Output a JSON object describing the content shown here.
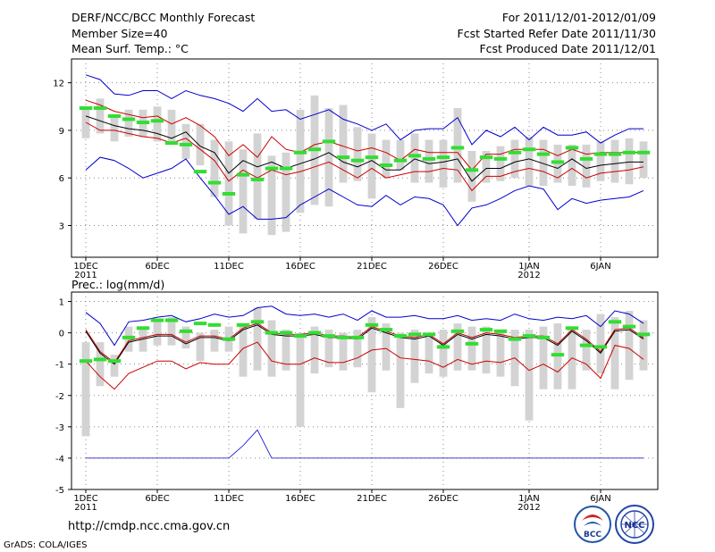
{
  "header": {
    "title": "DERF/NCC/BCC Monthly Forecast",
    "member_size": "Member Size=40",
    "variable": "Mean Surf. Temp.: °C",
    "period": "For 2011/12/01-2012/01/09",
    "fcst_started": "Fcst Started Refer Date 2011/11/30",
    "fcst_produced": "Fcst Produced Date 2011/12/01"
  },
  "footer": {
    "url": "http://cmdp.ncc.cma.gov.cn",
    "credit": "GrADS: COLA/IGES",
    "logo_bcc": "BCC",
    "logo_ncc": "NCC"
  },
  "colors": {
    "spread": "#d3d3d3",
    "observed": "#33dd33",
    "envelope": "#0000cc",
    "quartile": "#cc0000",
    "mean": "#000000",
    "grid": "#888888"
  },
  "chart_data": [
    {
      "type": "line",
      "title": "",
      "ylabel": "Mean Surf. Temp.: °C",
      "days": 40,
      "x_ticks": [
        {
          "day": 1,
          "label": "1DEC",
          "sub": "2011"
        },
        {
          "day": 6,
          "label": "6DEC",
          "sub": ""
        },
        {
          "day": 11,
          "label": "11DEC",
          "sub": ""
        },
        {
          "day": 16,
          "label": "16DEC",
          "sub": ""
        },
        {
          "day": 21,
          "label": "21DEC",
          "sub": ""
        },
        {
          "day": 26,
          "label": "26DEC",
          "sub": ""
        },
        {
          "day": 32,
          "label": "1JAN",
          "sub": "2012"
        },
        {
          "day": 37,
          "label": "6JAN",
          "sub": ""
        }
      ],
      "ylim": [
        1,
        13.5
      ],
      "y_ticks": [
        3,
        6,
        9,
        12
      ],
      "y_tick_labels": [
        "3",
        "6",
        "9",
        "12"
      ],
      "bar_low": [
        8.5,
        8.8,
        8.3,
        8.6,
        8.6,
        8.3,
        8.3,
        7.2,
        6.8,
        4.8,
        3.0,
        2.5,
        3.4,
        2.4,
        2.6,
        3.8,
        4.3,
        4.2,
        5.7,
        5.8,
        4.7,
        6.0,
        6.5,
        5.7,
        5.7,
        5.4,
        5.7,
        4.5,
        5.7,
        5.8,
        6.0,
        5.5,
        5.5,
        5.7,
        5.5,
        5.4,
        5.8,
        5.7,
        5.6,
        6.0
      ],
      "bar_high": [
        10.5,
        11.0,
        10.0,
        10.3,
        10.3,
        10.5,
        10.3,
        9.4,
        9.4,
        8.4,
        8.3,
        7.8,
        8.8,
        7.4,
        7.6,
        10.3,
        11.2,
        10.4,
        10.6,
        9.2,
        8.8,
        8.4,
        8.4,
        8.8,
        8.4,
        8.4,
        10.4,
        7.7,
        7.7,
        8.0,
        8.4,
        8.6,
        8.4,
        8.1,
        8.1,
        8.1,
        8.3,
        8.4,
        8.5,
        8.3
      ],
      "obs": [
        10.4,
        10.4,
        9.9,
        9.7,
        9.5,
        9.6,
        8.2,
        8.1,
        6.4,
        5.7,
        5.0,
        6.2,
        5.9,
        6.6,
        6.6,
        7.6,
        7.8,
        8.3,
        7.3,
        7.1,
        7.3,
        6.8,
        7.1,
        7.4,
        7.2,
        7.3,
        7.9,
        6.5,
        7.3,
        7.2,
        7.6,
        7.8,
        7.5,
        7.0,
        7.9,
        7.2,
        7.5,
        7.5,
        7.6,
        7.6
      ],
      "max": [
        12.5,
        12.2,
        11.3,
        11.2,
        11.5,
        11.5,
        11.0,
        11.5,
        11.2,
        11.0,
        10.7,
        10.2,
        11.0,
        10.2,
        10.3,
        9.7,
        10.0,
        10.3,
        9.7,
        9.4,
        9.0,
        9.4,
        8.4,
        9.0,
        9.1,
        9.1,
        9.8,
        8.1,
        9.0,
        8.6,
        9.2,
        8.4,
        9.2,
        8.7,
        8.7,
        8.9,
        8.2,
        8.7,
        9.1,
        9.1
      ],
      "q_high": [
        10.9,
        10.6,
        10.2,
        10.0,
        9.8,
        9.9,
        9.4,
        9.8,
        9.3,
        8.6,
        7.4,
        8.1,
        7.3,
        8.6,
        7.8,
        7.6,
        8.1,
        8.3,
        8.0,
        7.7,
        7.9,
        7.6,
        7.1,
        7.8,
        7.6,
        7.6,
        7.6,
        6.5,
        7.5,
        7.5,
        7.8,
        7.8,
        7.8,
        7.4,
        7.8,
        7.5,
        7.6,
        7.6,
        7.6,
        7.6
      ],
      "mean": [
        9.9,
        9.6,
        9.3,
        9.1,
        9.0,
        8.8,
        8.5,
        8.9,
        8.0,
        7.6,
        6.3,
        7.1,
        6.7,
        7.0,
        6.6,
        6.9,
        7.2,
        7.6,
        7.0,
        6.7,
        7.1,
        6.5,
        6.5,
        7.2,
        6.9,
        7.0,
        7.2,
        5.8,
        6.6,
        6.6,
        7.0,
        7.2,
        6.9,
        6.6,
        7.2,
        6.6,
        6.8,
        6.9,
        7.0,
        7.0
      ],
      "q_low": [
        9.5,
        9.0,
        9.0,
        8.8,
        8.6,
        8.5,
        8.2,
        8.5,
        7.8,
        7.1,
        5.8,
        6.5,
        6.0,
        6.5,
        6.2,
        6.4,
        6.7,
        7.0,
        6.5,
        6.0,
        6.6,
        6.0,
        6.2,
        6.4,
        6.4,
        6.6,
        6.5,
        5.2,
        6.1,
        6.1,
        6.4,
        6.6,
        6.4,
        6.0,
        6.6,
        6.0,
        6.3,
        6.4,
        6.5,
        6.7
      ],
      "min": [
        6.5,
        7.3,
        7.1,
        6.6,
        6.0,
        6.3,
        6.6,
        7.2,
        6.0,
        4.9,
        3.7,
        4.2,
        3.4,
        3.4,
        3.5,
        4.3,
        4.8,
        5.3,
        4.8,
        4.3,
        4.2,
        4.9,
        4.3,
        4.8,
        4.7,
        4.3,
        3.0,
        4.1,
        4.3,
        4.7,
        5.2,
        5.5,
        5.3,
        4.0,
        4.7,
        4.4,
        4.6,
        4.7,
        4.8,
        5.2
      ]
    },
    {
      "type": "line",
      "title": "",
      "ylabel": "Prec.: log(mm/d)",
      "days": 40,
      "x_ticks": [
        {
          "day": 1,
          "label": "1DEC",
          "sub": "2011"
        },
        {
          "day": 6,
          "label": "6DEC",
          "sub": ""
        },
        {
          "day": 11,
          "label": "11DEC",
          "sub": ""
        },
        {
          "day": 16,
          "label": "16DEC",
          "sub": ""
        },
        {
          "day": 21,
          "label": "21DEC",
          "sub": ""
        },
        {
          "day": 26,
          "label": "26DEC",
          "sub": ""
        },
        {
          "day": 32,
          "label": "1JAN",
          "sub": "2012"
        },
        {
          "day": 37,
          "label": "6JAN",
          "sub": ""
        }
      ],
      "ylim": [
        -5,
        1.3
      ],
      "y_ticks": [
        -5,
        -4,
        -3,
        -2,
        -1,
        0,
        1
      ],
      "y_tick_labels": [
        "-5",
        "-4",
        "-3",
        "-2",
        "-1",
        "0",
        "1"
      ],
      "bar_low": [
        -3.3,
        -1.7,
        -1.4,
        -0.6,
        -0.6,
        -0.4,
        -0.4,
        -0.5,
        -0.9,
        -0.6,
        -0.6,
        -1.4,
        -1.2,
        -1.4,
        -1.2,
        -3.0,
        -1.3,
        -1.1,
        -1.2,
        -1.1,
        -1.9,
        -1.2,
        -2.4,
        -1.6,
        -1.3,
        -1.4,
        -1.2,
        -1.2,
        -1.3,
        -1.4,
        -1.7,
        -2.8,
        -1.8,
        -1.8,
        -1.8,
        -1.2,
        -1.3,
        -1.8,
        -1.5,
        -1.2
      ],
      "bar_high": [
        -0.3,
        -0.3,
        -0.7,
        0.2,
        0.1,
        0.4,
        0.5,
        0.2,
        0.0,
        0.1,
        0.2,
        0.3,
        0.8,
        0.4,
        0.1,
        0.0,
        0.2,
        0.1,
        0.0,
        0.1,
        0.5,
        0.3,
        0.0,
        0.1,
        0.0,
        0.1,
        0.3,
        0.2,
        0.2,
        0.1,
        0.1,
        0.1,
        0.2,
        0.3,
        0.2,
        0.1,
        0.6,
        0.5,
        0.7,
        0.4
      ],
      "obs": [
        -0.9,
        -0.85,
        -0.9,
        -0.15,
        0.15,
        0.4,
        0.4,
        0.05,
        0.3,
        0.25,
        -0.2,
        0.25,
        0.35,
        0.0,
        0.0,
        -0.1,
        0.0,
        -0.1,
        -0.15,
        -0.15,
        0.25,
        0.1,
        -0.1,
        -0.05,
        -0.05,
        -0.45,
        0.05,
        -0.35,
        0.1,
        0.05,
        -0.2,
        -0.1,
        -0.15,
        -0.7,
        0.15,
        -0.4,
        -0.45,
        0.35,
        0.2,
        -0.05
      ],
      "max": [
        0.65,
        0.3,
        -0.4,
        0.35,
        0.4,
        0.5,
        0.55,
        0.35,
        0.45,
        0.6,
        0.5,
        0.55,
        0.8,
        0.85,
        0.6,
        0.55,
        0.6,
        0.5,
        0.6,
        0.4,
        0.7,
        0.5,
        0.5,
        0.55,
        0.45,
        0.45,
        0.55,
        0.4,
        0.45,
        0.4,
        0.6,
        0.45,
        0.4,
        0.5,
        0.45,
        0.55,
        0.2,
        0.7,
        0.6,
        0.3
      ],
      "q_high": [
        0.1,
        -0.6,
        -0.95,
        -0.25,
        -0.15,
        -0.05,
        -0.05,
        -0.3,
        -0.1,
        -0.1,
        -0.2,
        0.15,
        0.3,
        0.0,
        -0.05,
        -0.05,
        0.0,
        -0.1,
        -0.1,
        -0.15,
        0.2,
        0.05,
        -0.1,
        -0.15,
        -0.05,
        -0.35,
        0.0,
        -0.15,
        0.0,
        -0.05,
        -0.15,
        -0.1,
        -0.1,
        -0.35,
        0.1,
        -0.2,
        -0.6,
        0.1,
        0.15,
        -0.15
      ],
      "mean": [
        0.05,
        -0.65,
        -1.0,
        -0.3,
        -0.2,
        -0.1,
        -0.1,
        -0.35,
        -0.15,
        -0.15,
        -0.25,
        0.1,
        0.25,
        -0.05,
        -0.1,
        -0.1,
        -0.05,
        -0.15,
        -0.15,
        -0.2,
        0.15,
        0.0,
        -0.15,
        -0.2,
        -0.1,
        -0.4,
        -0.05,
        -0.2,
        -0.05,
        -0.1,
        -0.2,
        -0.15,
        -0.15,
        -0.4,
        0.05,
        -0.25,
        -0.65,
        0.05,
        0.1,
        -0.2
      ],
      "q_low": [
        -0.9,
        -1.4,
        -1.8,
        -1.3,
        -1.1,
        -0.9,
        -0.9,
        -1.15,
        -0.95,
        -1.0,
        -1.0,
        -0.5,
        -0.3,
        -0.9,
        -1.0,
        -1.0,
        -0.8,
        -0.95,
        -0.95,
        -0.8,
        -0.55,
        -0.5,
        -0.8,
        -0.85,
        -0.9,
        -1.1,
        -0.85,
        -1.0,
        -0.9,
        -0.95,
        -0.8,
        -1.2,
        -1.0,
        -1.25,
        -0.8,
        -1.0,
        -1.45,
        -0.4,
        -0.5,
        -0.85
      ],
      "min": [
        -4,
        -4,
        -4,
        -4,
        -4,
        -4,
        -4,
        -4,
        -4,
        -4,
        -4,
        -3.6,
        -3.1,
        -4,
        -4,
        -4,
        -4,
        -4,
        -4,
        -4,
        -4,
        -4,
        -4,
        -4,
        -4,
        -4,
        -4,
        -4,
        -4,
        -4,
        -4,
        -4,
        -4,
        -4,
        -4,
        -4,
        -4,
        -4,
        -4,
        -4
      ]
    }
  ]
}
